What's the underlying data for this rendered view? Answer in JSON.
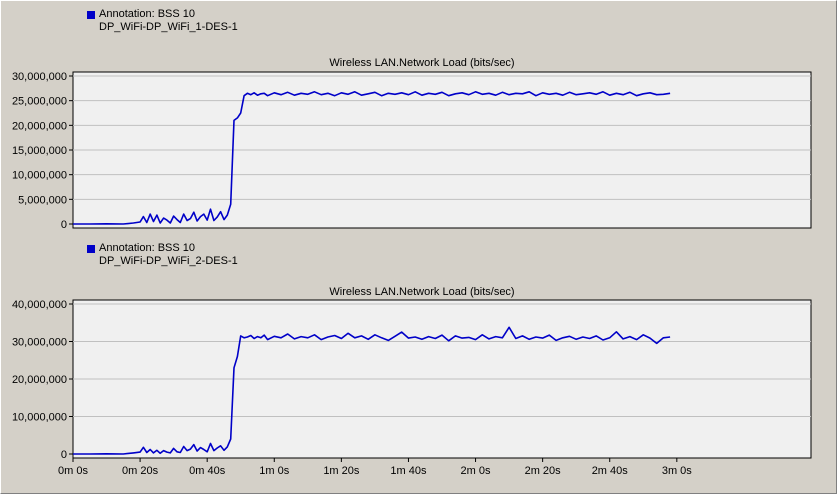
{
  "chart_data": [
    {
      "type": "line",
      "annotation": "Annotation: BSS 10",
      "legend_label": "DP_WiFi-DP_WiFi_1-DES-1",
      "title": "Wireless LAN.Network Load (bits/sec)",
      "ylim": [
        0,
        30000000
      ],
      "yticks": [
        "0",
        "5,000,000",
        "10,000,000",
        "15,000,000",
        "20,000,000",
        "25,000,000",
        "30,000,000"
      ],
      "xlim": [
        0,
        220
      ],
      "xticks": [],
      "grid": true,
      "series_color": "#0000c8",
      "series": [
        {
          "x": [
            0,
            5,
            10,
            15,
            18,
            20,
            21,
            22,
            23,
            24,
            25,
            26,
            27,
            28,
            29,
            30,
            31,
            32,
            33,
            34,
            35,
            36,
            37,
            38,
            39,
            40,
            41,
            42,
            43,
            44,
            45,
            46,
            47,
            48,
            49,
            50,
            51,
            52,
            53,
            54,
            55,
            56,
            57,
            58,
            60,
            62,
            64,
            66,
            68,
            70,
            72,
            74,
            76,
            78,
            80,
            82,
            84,
            86,
            88,
            90,
            92,
            94,
            96,
            98,
            100,
            102,
            104,
            106,
            108,
            110,
            112,
            114,
            116,
            118,
            120,
            122,
            124,
            126,
            128,
            130,
            132,
            134,
            136,
            138,
            140,
            142,
            144,
            146,
            148,
            150,
            152,
            154,
            156,
            158,
            160,
            162,
            164,
            166,
            168,
            170,
            172,
            174,
            176,
            178
          ],
          "y": [
            0,
            0,
            50000,
            0,
            200000,
            400000,
            1500000,
            300000,
            2000000,
            500000,
            1800000,
            200000,
            1200000,
            800000,
            200000,
            1600000,
            900000,
            300000,
            2000000,
            700000,
            1100000,
            2400000,
            600000,
            1500000,
            2000000,
            800000,
            3000000,
            700000,
            1400000,
            2500000,
            900000,
            1800000,
            4000000,
            21000000,
            21500000,
            22500000,
            26000000,
            26500000,
            26200000,
            26600000,
            26100000,
            26400000,
            26500000,
            26000000,
            26600000,
            26200000,
            26700000,
            26100000,
            26500000,
            26300000,
            26800000,
            26200000,
            26500000,
            26000000,
            26600000,
            26300000,
            26800000,
            26100000,
            26400000,
            26700000,
            26000000,
            26500000,
            26300000,
            26600000,
            26200000,
            26800000,
            26100000,
            26500000,
            26300000,
            26700000,
            26000000,
            26400000,
            26600000,
            26200000,
            26800000,
            26300000,
            26500000,
            26100000,
            26700000,
            26200000,
            26500000,
            26400000,
            26800000,
            26000000,
            26600000,
            26300000,
            26500000,
            26100000,
            26700000,
            26200000,
            26400000,
            26600000,
            26300000,
            26800000,
            26100000,
            26500000,
            26200000,
            26700000,
            26000000,
            26400000,
            26600000,
            26200000,
            26300000,
            26500000
          ]
        }
      ]
    },
    {
      "type": "line",
      "annotation": "Annotation: BSS 10",
      "legend_label": "DP_WiFi-DP_WiFi_2-DES-1",
      "title": "Wireless LAN.Network Load (bits/sec)",
      "ylim": [
        0,
        40000000
      ],
      "yticks": [
        "0",
        "10,000,000",
        "20,000,000",
        "30,000,000",
        "40,000,000"
      ],
      "xlim": [
        0,
        220
      ],
      "xticks": [
        "0m 0s",
        "0m 20s",
        "0m 40s",
        "1m 0s",
        "1m 20s",
        "1m 40s",
        "2m 0s",
        "2m 20s",
        "2m 40s",
        "3m 0s"
      ],
      "grid": true,
      "series_color": "#0000c8",
      "series": [
        {
          "x": [
            0,
            5,
            10,
            15,
            18,
            20,
            21,
            22,
            23,
            24,
            25,
            26,
            27,
            28,
            29,
            30,
            31,
            32,
            33,
            34,
            35,
            36,
            37,
            38,
            39,
            40,
            41,
            42,
            43,
            44,
            45,
            46,
            47,
            48,
            49,
            50,
            51,
            52,
            53,
            54,
            55,
            56,
            57,
            58,
            60,
            62,
            64,
            66,
            68,
            70,
            72,
            74,
            76,
            78,
            80,
            82,
            84,
            86,
            88,
            90,
            92,
            94,
            96,
            98,
            100,
            102,
            104,
            106,
            108,
            110,
            112,
            114,
            116,
            118,
            120,
            122,
            124,
            126,
            128,
            130,
            132,
            134,
            136,
            138,
            140,
            142,
            144,
            146,
            148,
            150,
            152,
            154,
            156,
            158,
            160,
            162,
            164,
            166,
            168,
            170,
            172,
            174,
            176,
            178
          ],
          "y": [
            0,
            0,
            50000,
            0,
            300000,
            500000,
            1800000,
            400000,
            1200000,
            300000,
            1000000,
            200000,
            900000,
            500000,
            300000,
            1500000,
            600000,
            400000,
            2000000,
            900000,
            1300000,
            2500000,
            800000,
            1700000,
            1200000,
            600000,
            2800000,
            900000,
            1600000,
            2200000,
            1000000,
            1900000,
            4000000,
            23000000,
            26000000,
            31500000,
            31000000,
            31200000,
            31600000,
            30800000,
            31300000,
            31000000,
            31700000,
            30500000,
            31400000,
            31000000,
            32000000,
            30700000,
            31300000,
            31000000,
            31800000,
            30500000,
            31200000,
            31600000,
            30800000,
            32200000,
            31000000,
            31500000,
            30600000,
            31800000,
            31000000,
            30300000,
            31400000,
            32500000,
            30900000,
            31200000,
            30600000,
            31300000,
            30800000,
            31700000,
            30200000,
            31500000,
            30900000,
            31100000,
            30500000,
            31800000,
            30700000,
            31300000,
            31000000,
            33800000,
            30800000,
            31500000,
            30600000,
            31200000,
            30900000,
            31700000,
            30300000,
            31000000,
            31400000,
            30600000,
            31200000,
            30800000,
            31500000,
            30400000,
            31000000,
            32600000,
            30700000,
            31300000,
            30500000,
            31800000,
            30900000,
            29500000,
            31000000,
            31200000
          ]
        }
      ]
    }
  ]
}
